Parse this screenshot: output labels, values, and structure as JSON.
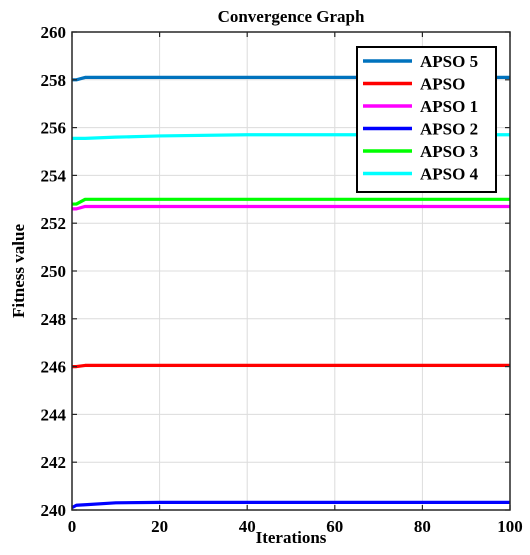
{
  "chart_data": {
    "type": "line",
    "title": "Convergence Graph",
    "xlabel": "Iterations",
    "ylabel": "Fitness value",
    "xlim": [
      0,
      100
    ],
    "ylim": [
      240,
      260
    ],
    "xticks": [
      0,
      20,
      40,
      60,
      80,
      100
    ],
    "yticks": [
      240,
      242,
      244,
      246,
      248,
      250,
      252,
      254,
      256,
      258,
      260
    ],
    "grid": true,
    "legend_position": "top-right",
    "series": [
      {
        "name": "APSO 5",
        "color": "#0072BD",
        "x": [
          0,
          1,
          3,
          100
        ],
        "y": [
          258.0,
          258.0,
          258.1,
          258.1
        ]
      },
      {
        "name": "APSO",
        "color": "#FF0000",
        "x": [
          0,
          1,
          3,
          100
        ],
        "y": [
          246.0,
          246.0,
          246.05,
          246.05
        ]
      },
      {
        "name": "APSO 1",
        "color": "#FF00FF",
        "x": [
          0,
          1,
          3,
          100
        ],
        "y": [
          252.6,
          252.6,
          252.7,
          252.7
        ]
      },
      {
        "name": "APSO 2",
        "color": "#0000FF",
        "x": [
          0,
          1,
          3,
          10,
          20,
          100
        ],
        "y": [
          240.1,
          240.2,
          240.22,
          240.3,
          240.32,
          240.32
        ]
      },
      {
        "name": "APSO 3",
        "color": "#00FF00",
        "x": [
          0,
          1,
          3,
          10,
          100
        ],
        "y": [
          252.8,
          252.8,
          253.0,
          253.0,
          253.0
        ]
      },
      {
        "name": "APSO 4",
        "color": "#00FFFF",
        "x": [
          0,
          3,
          10,
          20,
          40,
          100
        ],
        "y": [
          255.55,
          255.55,
          255.6,
          255.65,
          255.7,
          255.7
        ]
      }
    ]
  }
}
